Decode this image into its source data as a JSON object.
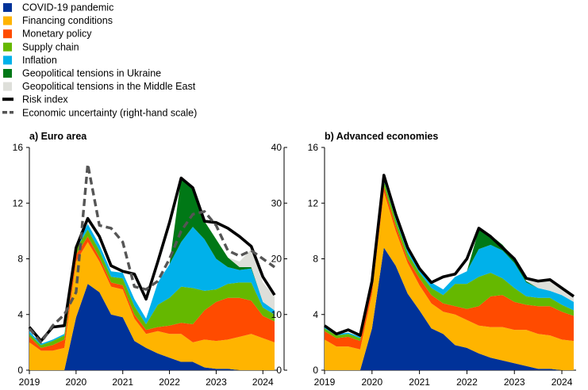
{
  "colors": {
    "covid": "#003299",
    "financing": "#FFB400",
    "monetary": "#FF4B00",
    "supply": "#65B800",
    "inflation": "#00B1EA",
    "ukraine": "#007816",
    "middle_east": "#DEDFDA",
    "risk": "#000000",
    "econ": "#555555"
  },
  "chart_data": [
    {
      "type": "area",
      "title": "a) Euro area",
      "x": [
        2019.0,
        2019.25,
        2019.5,
        2019.75,
        2020.0,
        2020.25,
        2020.5,
        2020.75,
        2021.0,
        2021.25,
        2021.5,
        2021.75,
        2022.0,
        2022.25,
        2022.5,
        2022.75,
        2023.0,
        2023.25,
        2023.5,
        2023.75,
        2024.0,
        2024.25
      ],
      "xticks": [
        "2019",
        "2020",
        "2021",
        "2022",
        "2023",
        "2024"
      ],
      "xtick_values": [
        2019,
        2020,
        2021,
        2022,
        2023,
        2024
      ],
      "ylim": [
        0,
        16
      ],
      "yticks": [
        0,
        4,
        8,
        12,
        16
      ],
      "y2lim": [
        0,
        40
      ],
      "y2ticks": [
        0,
        10,
        20,
        30,
        40
      ],
      "series": [
        {
          "name": "COVID-19 pandemic",
          "key": "covid",
          "values": [
            0,
            0,
            0,
            0,
            3.8,
            6.2,
            5.6,
            4.0,
            3.8,
            2.1,
            1.6,
            1.2,
            0.9,
            0.6,
            0.6,
            0.2,
            0.1,
            0.1,
            0.0,
            0.0,
            0.0,
            0.0
          ]
        },
        {
          "name": "Financing conditions",
          "key": "financing",
          "values": [
            2.0,
            1.4,
            1.4,
            1.6,
            4.0,
            3.0,
            2.2,
            2.0,
            2.0,
            1.6,
            1.0,
            1.6,
            1.7,
            2.0,
            1.4,
            2.0,
            2.0,
            2.1,
            2.4,
            2.6,
            2.3,
            2.0
          ]
        },
        {
          "name": "Monetary policy",
          "key": "monetary",
          "values": [
            0.4,
            0.2,
            0.4,
            0.6,
            0.5,
            0.4,
            0.3,
            0.3,
            0.3,
            0.3,
            0.3,
            0.3,
            0.6,
            0.8,
            1.3,
            2.1,
            2.8,
            3.0,
            2.8,
            2.4,
            1.6,
            1.5
          ]
        },
        {
          "name": "Supply chain",
          "key": "supply",
          "values": [
            0.2,
            0.2,
            0.3,
            0.3,
            0.4,
            0.5,
            0.5,
            0.4,
            0.5,
            0.6,
            0.4,
            1.6,
            2.0,
            2.6,
            2.6,
            1.4,
            0.9,
            1.0,
            1.1,
            1.3,
            0.6,
            0.5
          ]
        },
        {
          "name": "Inflation",
          "key": "inflation",
          "values": [
            0.2,
            0.1,
            0.1,
            0.1,
            0.3,
            0.4,
            0.4,
            0.4,
            0.4,
            0.5,
            0.4,
            1.6,
            2.4,
            3.2,
            4.4,
            3.7,
            2.2,
            1.2,
            0.9,
            1.0,
            0.4,
            0.3
          ]
        },
        {
          "name": "Geopolitical tensions in Ukraine",
          "key": "ukraine",
          "values": [
            0,
            0,
            0,
            0,
            0,
            0,
            0,
            0,
            0,
            0,
            0,
            0,
            0,
            4.6,
            2.8,
            1.3,
            1.4,
            0.7,
            0.2,
            0.1,
            0.0,
            0.0
          ]
        },
        {
          "name": "Geopolitical tensions in the Middle East",
          "key": "middle_east",
          "values": [
            0,
            0,
            0,
            0,
            0,
            0,
            0,
            0,
            0,
            0,
            0,
            0,
            0,
            0,
            0,
            0,
            0,
            0,
            0.4,
            1.3,
            1.4,
            1.0
          ]
        }
      ],
      "risk_index": {
        "name": "Risk index",
        "values": [
          3.1,
          2.1,
          3.1,
          3.2,
          8.8,
          10.9,
          9.6,
          7.5,
          7.1,
          6.9,
          5.1,
          7.8,
          10.6,
          13.8,
          13.1,
          10.7,
          10.6,
          10.2,
          9.6,
          8.9,
          6.7,
          5.4
        ]
      },
      "econ_uncertainty": {
        "name": "Economic uncertainty (right-hand scale)",
        "values": [
          7.5,
          5.0,
          8.0,
          10.0,
          14.0,
          37.0,
          26.0,
          25.5,
          23.0,
          15.0,
          14.5,
          16.0,
          20.0,
          25.0,
          28.0,
          28.5,
          26.0,
          21.5,
          20.5,
          21.5,
          20.0,
          18.5
        ]
      }
    },
    {
      "type": "area",
      "title": "b) Advanced economies",
      "x": [
        2019.0,
        2019.25,
        2019.5,
        2019.75,
        2020.0,
        2020.25,
        2020.5,
        2020.75,
        2021.0,
        2021.25,
        2021.5,
        2021.75,
        2022.0,
        2022.25,
        2022.5,
        2022.75,
        2023.0,
        2023.25,
        2023.5,
        2023.75,
        2024.0,
        2024.25
      ],
      "xticks": [
        "2019",
        "2020",
        "2021",
        "2022",
        "2023",
        "2024"
      ],
      "xtick_values": [
        2019,
        2020,
        2021,
        2022,
        2023,
        2024
      ],
      "ylim": [
        0,
        16
      ],
      "yticks": [
        0,
        4,
        8,
        12,
        16
      ],
      "series": [
        {
          "name": "COVID-19 pandemic",
          "key": "covid",
          "values": [
            0,
            0,
            0,
            0,
            3.0,
            8.8,
            7.5,
            5.5,
            4.3,
            3.0,
            2.6,
            1.8,
            1.6,
            1.2,
            0.9,
            0.7,
            0.5,
            0.3,
            0.1,
            0.1,
            0.0,
            0.0
          ]
        },
        {
          "name": "Financing conditions",
          "key": "financing",
          "values": [
            2.2,
            1.7,
            1.7,
            1.5,
            2.5,
            4.0,
            2.5,
            2.2,
            1.8,
            1.8,
            1.6,
            2.2,
            2.0,
            2.0,
            2.2,
            2.4,
            2.4,
            2.6,
            2.5,
            2.4,
            2.2,
            2.1
          ]
        },
        {
          "name": "Monetary policy",
          "key": "monetary",
          "values": [
            0.6,
            0.6,
            0.7,
            0.6,
            0.5,
            0.4,
            0.4,
            0.3,
            0.5,
            0.6,
            0.6,
            0.6,
            0.8,
            1.4,
            2.2,
            2.3,
            2.0,
            1.8,
            2.0,
            2.1,
            2.0,
            1.8
          ]
        },
        {
          "name": "Supply chain",
          "key": "supply",
          "values": [
            0.2,
            0.2,
            0.2,
            0.2,
            0.3,
            0.4,
            0.4,
            0.4,
            0.4,
            0.5,
            0.6,
            1.6,
            1.8,
            2.1,
            1.7,
            1.2,
            1.0,
            0.6,
            0.6,
            0.6,
            0.5,
            0.4
          ]
        },
        {
          "name": "Inflation",
          "key": "inflation",
          "values": [
            0.2,
            0.1,
            0.1,
            0.1,
            0.2,
            0.4,
            0.4,
            0.4,
            0.3,
            0.4,
            0.4,
            0.5,
            0.9,
            2.0,
            2.0,
            2.0,
            1.8,
            1.0,
            0.7,
            0.5,
            0.7,
            0.6
          ]
        },
        {
          "name": "Geopolitical tensions in Ukraine",
          "key": "ukraine",
          "values": [
            0,
            0,
            0,
            0,
            0,
            0,
            0,
            0,
            0,
            0,
            0,
            0,
            0,
            1.4,
            0.7,
            0.4,
            0.3,
            0.1,
            0.0,
            0.0,
            0.0,
            0.0
          ]
        },
        {
          "name": "Geopolitical tensions in the Middle East",
          "key": "middle_east",
          "values": [
            0,
            0,
            0,
            0,
            0,
            0,
            0,
            0,
            0,
            0,
            0,
            0,
            0,
            0,
            0,
            0,
            0,
            0,
            0.6,
            0.7,
            0.5,
            0.4
          ]
        }
      ],
      "risk_index": {
        "name": "Risk index",
        "values": [
          3.2,
          2.6,
          2.9,
          2.5,
          6.4,
          14.0,
          11.2,
          8.8,
          7.3,
          6.3,
          6.7,
          6.9,
          8.0,
          10.2,
          9.6,
          8.8,
          8.0,
          6.6,
          6.4,
          6.5,
          5.9,
          5.3
        ]
      }
    }
  ],
  "legend": [
    {
      "label": "COVID-19 pandemic",
      "key": "covid",
      "kind": "box"
    },
    {
      "label": "Financing conditions",
      "key": "financing",
      "kind": "box"
    },
    {
      "label": "Monetary policy",
      "key": "monetary",
      "kind": "box"
    },
    {
      "label": "Supply chain",
      "key": "supply",
      "kind": "box"
    },
    {
      "label": "Inflation",
      "key": "inflation",
      "kind": "box"
    },
    {
      "label": "Geopolitical tensions in Ukraine",
      "key": "ukraine",
      "kind": "box"
    },
    {
      "label": "Geopolitical tensions in the Middle East",
      "key": "middle_east",
      "kind": "box"
    },
    {
      "label": "Risk index",
      "key": "risk",
      "kind": "line"
    },
    {
      "label": "Economic uncertainty (right-hand scale)",
      "key": "econ",
      "kind": "dash"
    }
  ]
}
